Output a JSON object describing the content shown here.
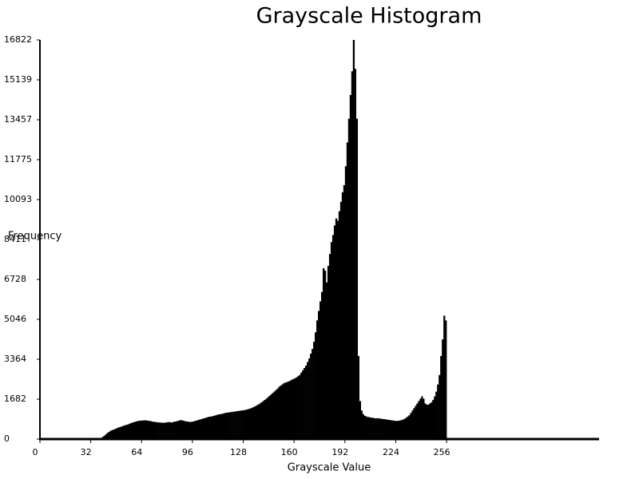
{
  "chart_data": {
    "type": "histogram",
    "title": "Grayscale Histogram",
    "x_label": "Grayscale Value",
    "y_label": "Frequency",
    "color": "#000000",
    "bins": [
      0,
      1,
      2,
      3,
      4,
      5,
      6,
      7,
      8,
      9,
      10,
      11,
      12,
      13,
      14,
      15,
      16,
      17,
      18,
      19,
      20,
      21,
      22,
      23,
      24,
      25,
      26,
      27,
      28,
      29,
      30,
      31,
      32,
      33,
      34,
      35,
      36,
      37,
      38,
      39,
      40,
      41,
      42,
      43,
      44,
      45,
      46,
      47,
      48,
      49,
      50,
      51,
      52,
      53,
      54,
      55,
      56,
      57,
      58,
      59,
      60,
      61,
      62,
      63,
      64,
      65,
      66,
      67,
      68,
      69,
      70,
      71,
      72,
      73,
      74,
      75,
      76,
      77,
      78,
      79,
      80,
      81,
      82,
      83,
      84,
      85,
      86,
      87,
      88,
      89,
      90,
      91,
      92,
      93,
      94,
      95,
      96,
      97,
      98,
      99,
      100,
      101,
      102,
      103,
      104,
      105,
      106,
      107,
      108,
      109,
      110,
      111,
      112,
      113,
      114,
      115,
      116,
      117,
      118,
      119,
      120,
      121,
      122,
      123,
      124,
      125,
      126,
      127,
      128,
      129,
      130,
      131,
      132,
      133,
      134,
      135,
      136,
      137,
      138,
      139,
      140,
      141,
      142,
      143,
      144,
      145,
      146,
      147,
      148,
      149,
      150,
      151,
      152,
      153,
      154,
      155,
      156,
      157,
      158,
      159,
      160,
      161,
      162,
      163,
      164,
      165,
      166,
      167,
      168,
      169,
      170,
      171,
      172,
      173,
      174,
      175,
      176,
      177,
      178,
      179,
      180,
      181,
      182,
      183,
      184,
      185,
      186,
      187,
      188,
      189,
      190,
      191,
      192,
      193,
      194,
      195,
      196,
      197,
      198,
      199,
      200,
      201,
      202,
      203,
      204,
      205,
      206,
      207,
      208,
      209,
      210,
      211,
      212,
      213,
      214,
      215,
      216,
      217,
      218,
      219,
      220,
      221,
      222,
      223,
      224,
      225,
      226,
      227,
      228,
      229,
      230,
      231,
      232,
      233,
      234,
      235,
      236,
      237,
      238,
      239,
      240,
      241,
      242,
      243,
      244,
      245,
      246,
      247,
      248,
      249,
      250,
      251,
      252,
      253,
      254,
      255,
      256
    ],
    "counts": [
      0,
      0,
      0,
      0,
      0,
      0,
      0,
      0,
      0,
      0,
      0,
      0,
      0,
      0,
      0,
      0,
      0,
      0,
      0,
      0,
      0,
      0,
      0,
      0,
      0,
      0,
      0,
      0,
      0,
      0,
      0,
      0,
      0,
      0,
      0,
      0,
      0,
      20,
      50,
      90,
      140,
      200,
      260,
      300,
      350,
      380,
      400,
      430,
      460,
      490,
      510,
      530,
      560,
      580,
      600,
      620,
      650,
      680,
      700,
      720,
      740,
      760,
      770,
      780,
      780,
      790,
      790,
      780,
      770,
      760,
      740,
      730,
      720,
      710,
      700,
      700,
      690,
      690,
      690,
      700,
      710,
      720,
      700,
      710,
      730,
      740,
      760,
      780,
      800,
      790,
      770,
      750,
      740,
      730,
      720,
      730,
      740,
      760,
      780,
      800,
      820,
      840,
      860,
      880,
      900,
      920,
      940,
      950,
      960,
      980,
      1000,
      1020,
      1040,
      1050,
      1060,
      1080,
      1100,
      1110,
      1120,
      1130,
      1140,
      1150,
      1160,
      1170,
      1180,
      1190,
      1200,
      1210,
      1220,
      1230,
      1250,
      1270,
      1290,
      1320,
      1350,
      1380,
      1420,
      1460,
      1500,
      1550,
      1600,
      1650,
      1700,
      1760,
      1820,
      1880,
      1940,
      2000,
      2060,
      2120,
      2200,
      2250,
      2300,
      2350,
      2380,
      2400,
      2430,
      2460,
      2500,
      2530,
      2560,
      2600,
      2650,
      2700,
      2800,
      2900,
      3000,
      3100,
      3250,
      3400,
      3600,
      3800,
      4100,
      4500,
      5000,
      5400,
      5800,
      6200,
      7200,
      7100,
      6600,
      7300,
      7800,
      8300,
      8600,
      9000,
      9300,
      9200,
      9600,
      10000,
      10400,
      10700,
      11500,
      12500,
      13500,
      14500,
      15500,
      16822,
      15600,
      13500,
      3500,
      1600,
      1200,
      1050,
      980,
      950,
      930,
      920,
      900,
      900,
      880,
      870,
      880,
      870,
      860,
      850,
      840,
      830,
      820,
      810,
      800,
      790,
      780,
      770,
      760,
      770,
      780,
      800,
      820,
      850,
      900,
      950,
      1000,
      1100,
      1200,
      1300,
      1400,
      1500,
      1600,
      1700,
      1800,
      1700,
      1500,
      1450,
      1450,
      1500,
      1550,
      1650,
      1800,
      2000,
      2300,
      2700,
      3500,
      4200,
      5200,
      5000
    ],
    "xlim": [
      0,
      352
    ],
    "xticks": [
      0,
      32,
      64,
      96,
      128,
      160,
      192,
      224,
      256
    ],
    "ylim": [
      0,
      16822
    ],
    "yticks": [
      0,
      1682,
      3364,
      5046,
      6728,
      8411,
      10093,
      11775,
      13457,
      15139,
      16822
    ]
  }
}
